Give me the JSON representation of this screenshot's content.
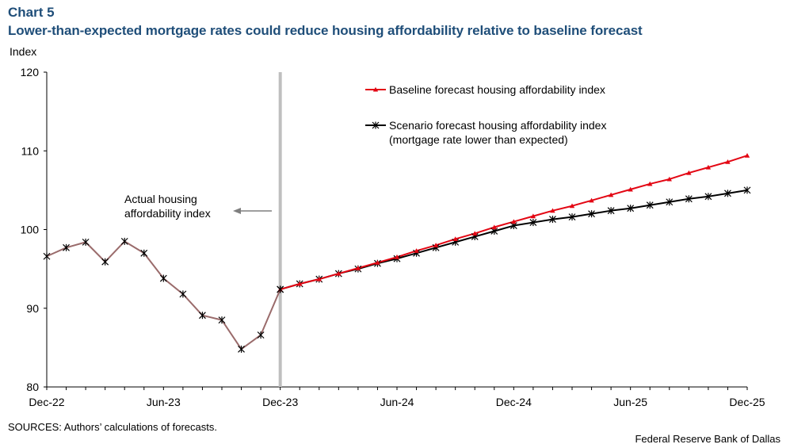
{
  "title": "Chart 5",
  "subtitle": "Lower-than-expected mortgage rates could reduce housing affordability relative to baseline forecast",
  "source": "SOURCES: Authors’ calculations of forecasts.",
  "credit": "Federal Reserve Bank of Dallas",
  "colors": {
    "baseline": "#e30613",
    "scenario": "#000000",
    "actual": "#9a6b6b",
    "divider": "#bfbfbf",
    "title": "#1f4e79",
    "arrow": "#7f7f7f"
  },
  "chart_data": {
    "type": "line",
    "ylabel": "Index",
    "ylim": [
      80,
      120
    ],
    "yticks": [
      80,
      90,
      100,
      110,
      120
    ],
    "xtick_labels": [
      "Dec-22",
      "Jun-23",
      "Dec-23",
      "Jun-24",
      "Dec-24",
      "Jun-25",
      "Dec-25"
    ],
    "xtick_positions": [
      0,
      6,
      12,
      18,
      24,
      30,
      36
    ],
    "x_range": [
      0,
      36
    ],
    "x_note": "x values are months counted from Dec-22 (0) to Dec-25 (36)",
    "divider_x": 12,
    "legend_placement": "top-right",
    "annotation": {
      "lines": [
        "Actual housing",
        "affordability index"
      ],
      "arrow": "left"
    },
    "series": [
      {
        "name": "Actual housing affordability index",
        "x": [
          0,
          1,
          2,
          3,
          4,
          5,
          6,
          7,
          8,
          9,
          10,
          11,
          12
        ],
        "values": [
          96.6,
          97.7,
          98.4,
          95.9,
          98.5,
          97.0,
          93.8,
          91.8,
          89.1,
          88.5,
          84.8,
          86.6,
          92.4
        ]
      },
      {
        "name": "Baseline forecast housing affordability index",
        "x": [
          12,
          13,
          14,
          15,
          16,
          17,
          18,
          19,
          20,
          21,
          22,
          23,
          24,
          25,
          26,
          27,
          28,
          29,
          30,
          31,
          32,
          33,
          34,
          35,
          36
        ],
        "values": [
          92.4,
          93.1,
          93.7,
          94.4,
          95.1,
          95.8,
          96.5,
          97.3,
          98.0,
          98.8,
          99.5,
          100.3,
          101.0,
          101.7,
          102.4,
          103.0,
          103.7,
          104.4,
          105.1,
          105.8,
          106.4,
          107.2,
          107.9,
          108.6,
          109.4
        ]
      },
      {
        "name": "Scenario forecast housing affordability index",
        "name_line2": "(mortgage rate lower than expected)",
        "x": [
          12,
          13,
          14,
          15,
          16,
          17,
          18,
          19,
          20,
          21,
          22,
          23,
          24,
          25,
          26,
          27,
          28,
          29,
          30,
          31,
          32,
          33,
          34,
          35,
          36
        ],
        "values": [
          92.4,
          93.1,
          93.7,
          94.4,
          95.0,
          95.7,
          96.3,
          97.0,
          97.7,
          98.4,
          99.1,
          99.8,
          100.5,
          100.9,
          101.3,
          101.6,
          102.0,
          102.4,
          102.7,
          103.1,
          103.5,
          103.9,
          104.2,
          104.6,
          105.0
        ]
      }
    ]
  }
}
